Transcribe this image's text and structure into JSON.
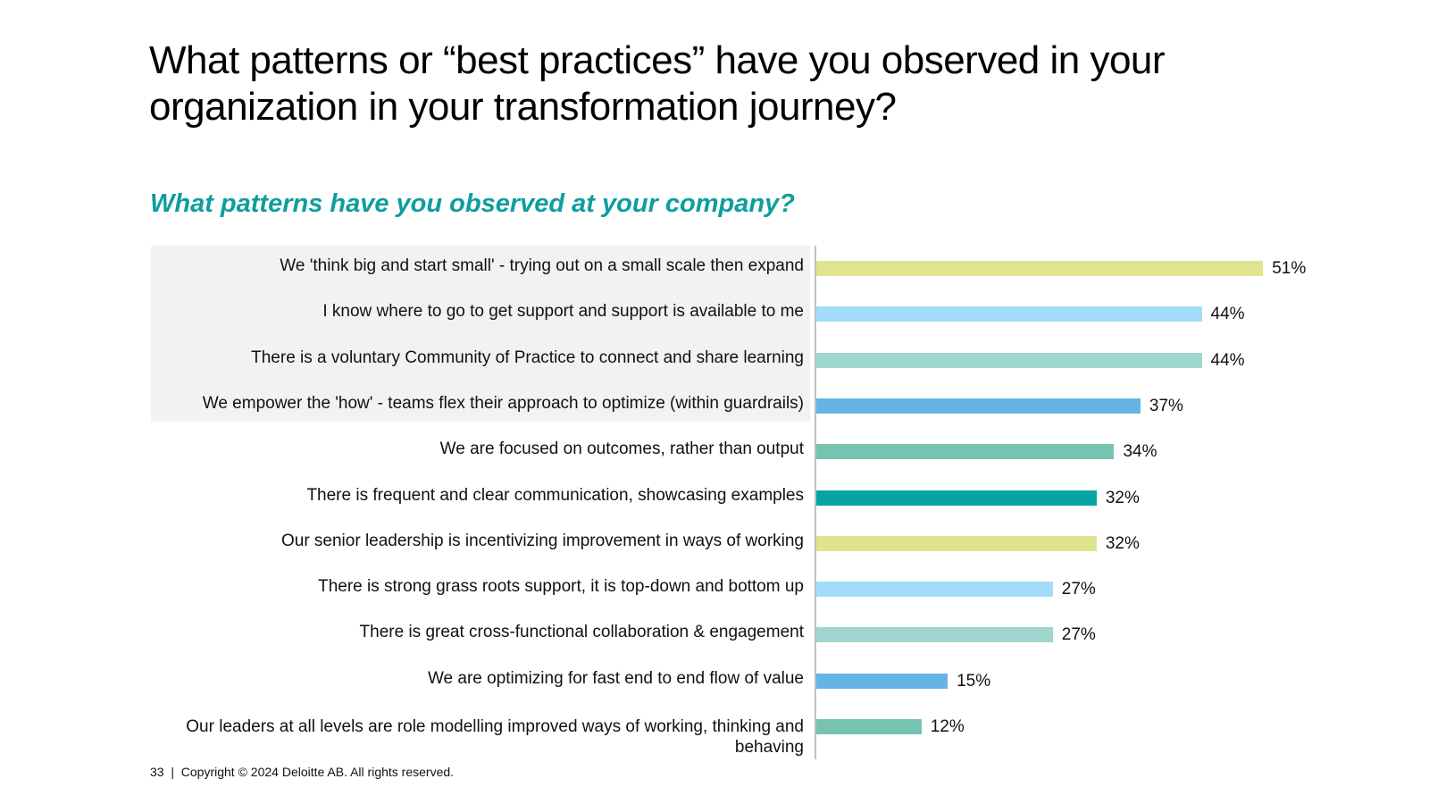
{
  "title": "What patterns or “best practices” have you observed in your organization in your transformation journey?",
  "footer": {
    "page_number": "33",
    "copyright": "Copyright © 2024 Deloitte AB. All rights reserved."
  },
  "chart_data": {
    "type": "bar",
    "orientation": "horizontal",
    "title": "What patterns have you observed at your company?",
    "xlabel": "",
    "ylabel": "",
    "xlim": [
      0,
      52
    ],
    "grid": false,
    "highlighted_rows": 4,
    "categories": [
      "We 'think big and start small' - trying out on a small scale then expand",
      "I know where to go to get support and support is available to me",
      "There is a voluntary Community of Practice to connect and share learning",
      "We empower the 'how' - teams flex their approach to optimize (within guardrails)",
      "We are focused on outcomes, rather than output",
      "There is frequent and clear communication, showcasing examples",
      "Our senior leadership is incentivizing improvement in ways of working",
      "There is strong grass roots support, it is top-down and bottom up",
      "There is great cross-functional collaboration & engagement",
      "We are optimizing for fast end to end flow of value",
      "Our leaders at all levels are role modelling improved ways of working, thinking and behaving"
    ],
    "values": [
      51,
      44,
      44,
      37,
      34,
      32,
      32,
      27,
      27,
      15,
      12
    ],
    "value_labels": [
      "51%",
      "44%",
      "44%",
      "37%",
      "34%",
      "32%",
      "32%",
      "27%",
      "27%",
      "15%",
      "12%"
    ],
    "colors": [
      "#e1e48f",
      "#a3dcfa",
      "#9fd6cf",
      "#64b4e4",
      "#77c3b2",
      "#06a5a3",
      "#e1e48f",
      "#a3dcfa",
      "#9fd6cf",
      "#64b4e4",
      "#77c3b2"
    ]
  }
}
